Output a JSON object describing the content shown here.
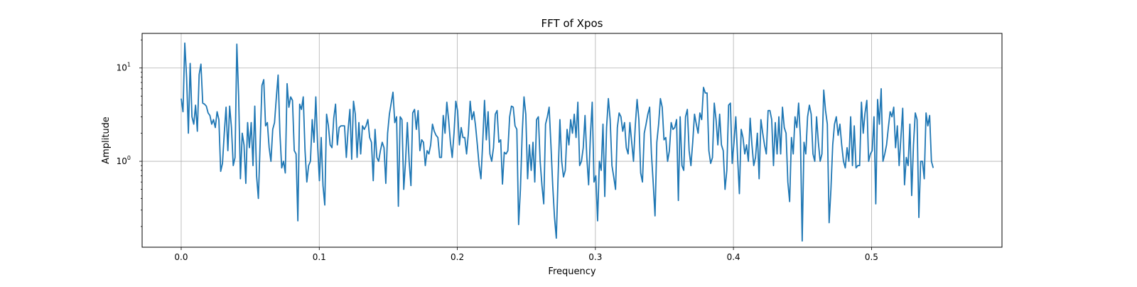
{
  "chart_data": {
    "type": "line",
    "title": "FFT of Xpos",
    "xlabel": "Frequency",
    "ylabel": "Amplitude",
    "xlim": [
      -0.0283,
      0.5945
    ],
    "ylim": [
      0.12,
      23.5
    ],
    "yscale": "log",
    "grid": true,
    "xticks": [
      0.0,
      0.1,
      0.2,
      0.3,
      0.4,
      0.5
    ],
    "xtick_labels": [
      "0.0",
      "0.1",
      "0.2",
      "0.3",
      "0.4",
      "0.5"
    ],
    "yticks": [
      {
        "value": 1,
        "base": "10",
        "exp": "0"
      },
      {
        "value": 10,
        "base": "10",
        "exp": "1"
      }
    ],
    "series": [
      {
        "color": "#1f77b4",
        "x_start": 0.0,
        "x_step": 0.0013,
        "values": [
          4.7,
          3.4,
          18.5,
          8.0,
          2.0,
          11.2,
          3.0,
          2.5,
          4.0,
          2.1,
          8.5,
          11.0,
          4.2,
          4.1,
          3.9,
          3.3,
          3.1,
          2.5,
          2.8,
          2.3,
          3.4,
          2.8,
          0.78,
          0.95,
          2.0,
          3.8,
          1.3,
          3.9,
          2.3,
          0.9,
          1.1,
          18.0,
          5.0,
          0.65,
          2.0,
          1.5,
          0.58,
          2.6,
          1.4,
          2.6,
          0.9,
          3.9,
          0.7,
          0.4,
          1.6,
          6.5,
          7.5,
          2.4,
          2.6,
          1.4,
          1.0,
          2.2,
          2.6,
          4.8,
          8.4,
          2.0,
          0.85,
          1.0,
          0.75,
          6.8,
          3.8,
          4.9,
          4.5,
          1.3,
          1.2,
          0.23,
          4.1,
          3.6,
          4.9,
          1.3,
          0.6,
          0.9,
          1.0,
          2.8,
          1.6,
          4.9,
          1.5,
          0.62,
          1.8,
          0.55,
          0.34,
          3.2,
          2.4,
          1.5,
          1.4,
          2.9,
          4.1,
          1.5,
          2.3,
          2.4,
          2.4,
          2.4,
          1.1,
          2.2,
          3.6,
          1.05,
          4.4,
          3.2,
          1.1,
          2.6,
          1.2,
          2.4,
          2.2,
          2.4,
          2.8,
          1.8,
          1.6,
          0.62,
          2.2,
          1.1,
          1.0,
          1.3,
          1.6,
          1.4,
          0.58,
          2.0,
          3.2,
          4.2,
          5.5,
          2.6,
          3.0,
          0.33,
          3.0,
          2.8,
          0.5,
          1.0,
          2.6,
          1.0,
          0.55,
          3.3,
          3.6,
          2.2,
          3.5,
          1.3,
          1.7,
          1.6,
          0.9,
          1.3,
          1.2,
          1.5,
          2.5,
          2.1,
          1.9,
          1.8,
          1.1,
          1.1,
          3.1,
          2.0,
          4.3,
          2.8,
          1.6,
          1.1,
          2.0,
          4.4,
          3.5,
          1.5,
          2.3,
          1.8,
          1.8,
          1.2,
          2.0,
          4.4,
          2.8,
          3.4,
          2.4,
          1.5,
          0.9,
          0.65,
          1.6,
          4.5,
          1.7,
          3.4,
          1.2,
          1.0,
          1.4,
          3.2,
          3.5,
          1.6,
          1.7,
          0.57,
          1.25,
          1.2,
          1.3,
          3.0,
          3.9,
          3.8,
          2.4,
          2.2,
          0.21,
          0.5,
          2.0,
          4.9,
          3.2,
          0.65,
          1.5,
          0.8,
          1.6,
          0.6,
          2.8,
          3.0,
          1.0,
          0.55,
          0.35,
          2.5,
          3.0,
          3.8,
          1.5,
          0.55,
          0.25,
          0.15,
          0.7,
          2.8,
          1.0,
          0.68,
          0.8,
          2.2,
          1.5,
          2.8,
          2.0,
          3.2,
          1.8,
          4.3,
          0.9,
          1.0,
          1.4,
          3.1,
          1.1,
          0.56,
          1.9,
          4.3,
          0.6,
          0.7,
          0.23,
          1.0,
          0.8,
          2.5,
          0.42,
          2.3,
          4.7,
          2.8,
          0.9,
          0.68,
          0.5,
          2.3,
          3.3,
          3.0,
          2.1,
          2.6,
          1.4,
          1.2,
          2.6,
          1.6,
          1.0,
          2.4,
          4.6,
          2.8,
          0.75,
          0.6,
          2.0,
          2.5,
          3.2,
          3.8,
          1.2,
          0.58,
          0.26,
          1.6,
          2.5,
          4.7,
          3.8,
          1.7,
          1.8,
          1.0,
          1.3,
          2.6,
          2.2,
          2.3,
          2.8,
          0.38,
          3.0,
          0.9,
          0.8,
          3.0,
          3.6,
          1.3,
          0.9,
          1.6,
          3.2,
          2.5,
          2.0,
          3.3,
          2.8,
          6.2,
          5.4,
          5.4,
          1.3,
          0.95,
          1.1,
          4.2,
          2.8,
          1.5,
          3.2,
          1.5,
          1.3,
          0.5,
          0.8,
          4.0,
          4.2,
          0.95,
          1.6,
          3.0,
          1.1,
          0.45,
          2.2,
          1.8,
          1.2,
          1.5,
          1.0,
          2.9,
          1.5,
          0.9,
          1.1,
          2.0,
          0.65,
          2.8,
          2.0,
          1.5,
          1.2,
          3.5,
          3.5,
          2.8,
          0.9,
          2.6,
          1.2,
          3.0,
          1.2,
          3.8,
          2.3,
          2.0,
          0.6,
          0.37,
          1.8,
          1.2,
          3.0,
          2.3,
          4.2,
          1.8,
          0.14,
          1.6,
          1.2,
          3.0,
          4.0,
          3.2,
          1.2,
          1.0,
          3.0,
          1.6,
          1.0,
          1.2,
          5.8,
          3.5,
          2.5,
          0.22,
          0.5,
          1.5,
          2.5,
          3.0,
          1.9,
          2.5,
          1.5,
          1.0,
          0.85,
          1.4,
          1.0,
          3.0,
          0.9,
          2.4,
          0.85,
          0.9,
          0.9,
          4.3,
          2.0,
          3.3,
          4.5,
          1.0,
          1.2,
          1.3,
          3.0,
          0.35,
          4.6,
          2.5,
          6.0,
          1.0,
          1.2,
          1.5,
          2.3,
          3.4,
          3.0,
          3.8,
          1.4,
          2.4,
          0.9,
          1.8,
          3.7,
          0.56,
          1.1,
          0.9,
          2.5,
          0.43,
          1.5,
          3.3,
          2.8,
          0.25,
          1.0,
          1.0,
          0.65,
          3.3,
          2.4,
          3.1,
          1.0,
          0.85
        ]
      }
    ]
  }
}
